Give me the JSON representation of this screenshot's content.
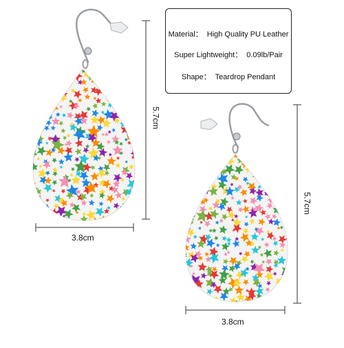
{
  "specs": [
    {
      "label": "Material：",
      "value": "High Quality PU Leather"
    },
    {
      "label": "Super Lightweight：",
      "value": "0.09lb/Pair"
    },
    {
      "label": "Shape：",
      "value": "Teardrop Pendant"
    }
  ],
  "dimensions": {
    "left_width": "3.8cm",
    "left_height": "5.7cm",
    "right_width": "3.8cm",
    "right_height": "5.7cm"
  },
  "colors": {
    "leather": "#f4f4f2",
    "hook": "#9a9ea3",
    "stars": [
      "#e53935",
      "#1e88e5",
      "#43a047",
      "#fdd835",
      "#fb8c00",
      "#8e24aa",
      "#f48fb1",
      "#26c6da",
      "#7cb342"
    ]
  }
}
